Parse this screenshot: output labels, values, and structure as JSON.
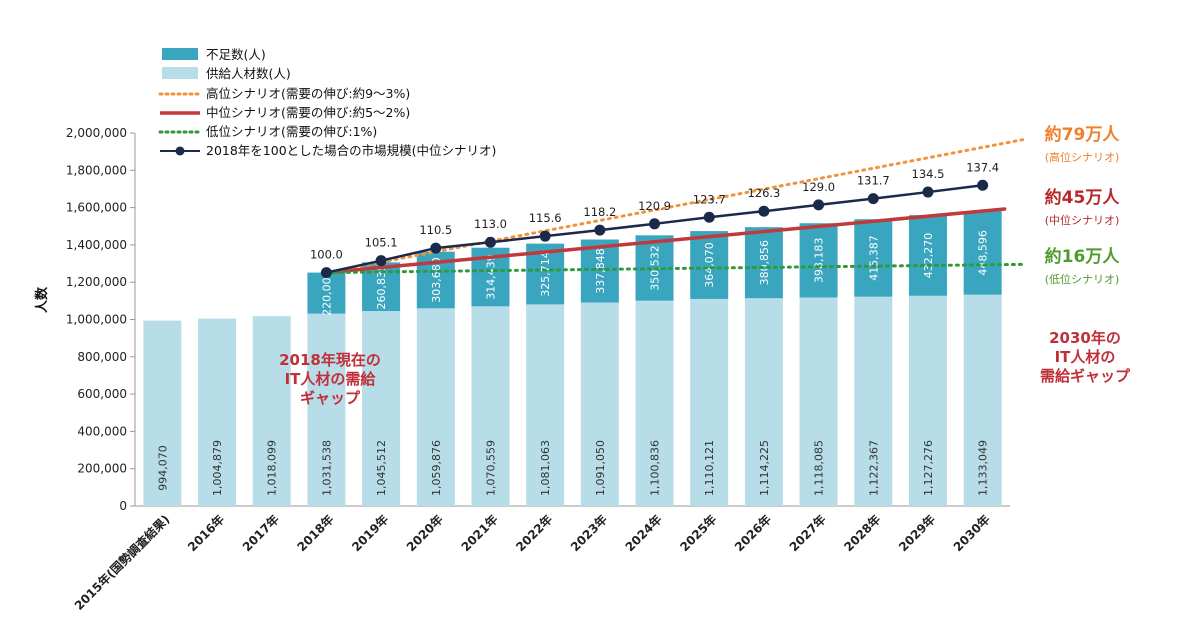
{
  "chart_data": {
    "type": "bar",
    "ylabel": "人数",
    "ylim": [
      0,
      2000000
    ],
    "yticks": [
      "0",
      "200,000",
      "400,000",
      "600,000",
      "800,000",
      "1,000,000",
      "1,200,000",
      "1,400,000",
      "1,600,000",
      "1,800,000",
      "2,000,000"
    ],
    "categories": [
      "2015年(国勢調査結果)",
      "2016年",
      "2017年",
      "2018年",
      "2019年",
      "2020年",
      "2021年",
      "2022年",
      "2023年",
      "2024年",
      "2025年",
      "2026年",
      "2027年",
      "2028年",
      "2029年",
      "2030年"
    ],
    "supply": {
      "name": "供給人材数(人)",
      "values": [
        994070,
        1004879,
        1018099,
        1031538,
        1045512,
        1059876,
        1070559,
        1081063,
        1091050,
        1100836,
        1110121,
        1114225,
        1118085,
        1122367,
        1127276,
        1133049
      ],
      "labels": [
        "994,070",
        "1,004,879",
        "1,018,099",
        "1,031,538",
        "1,045,512",
        "1,059,876",
        "1,070,559",
        "1,081,063",
        "1,091,050",
        "1,100,836",
        "1,110,121",
        "1,114,225",
        "1,118,085",
        "1,122,367",
        "1,127,276",
        "1,133,049"
      ],
      "color": "#b7dde8"
    },
    "shortage": {
      "name": "不足数(人)",
      "values": [
        null,
        null,
        null,
        220000,
        260835,
        303680,
        314439,
        325714,
        337848,
        350532,
        364070,
        380856,
        398183,
        415387,
        432270,
        448596
      ],
      "labels": [
        "",
        "",
        "",
        "220,000",
        "260,835",
        "303,680",
        "314,439",
        "325,714",
        "337,848",
        "350,532",
        "364,070",
        "380,856",
        "398,183",
        "415,387",
        "432,270",
        "448,596"
      ],
      "color": "#3aa5bf"
    },
    "scenarios": [
      {
        "name": "高位シナリオ(需要の伸び:約9～3%)",
        "style": "dotted",
        "color": "#f0943c",
        "values": [
          null,
          null,
          null,
          1251538,
          null,
          null,
          null,
          null,
          null,
          null,
          null,
          null,
          null,
          null,
          null,
          1923049
        ]
      },
      {
        "name": "中位シナリオ(需要の伸び:約5～2%)",
        "style": "solid",
        "color": "#c0393b",
        "values": [
          null,
          null,
          null,
          1251538,
          null,
          null,
          null,
          null,
          null,
          null,
          null,
          null,
          null,
          null,
          null,
          1581645
        ]
      },
      {
        "name": "低位シナリオ(需要の伸び:1%)",
        "style": "dotted",
        "color": "#2e9a3a",
        "values": [
          null,
          null,
          null,
          1251538,
          null,
          null,
          null,
          null,
          null,
          null,
          null,
          null,
          null,
          null,
          null,
          1293049
        ]
      }
    ],
    "index_series": {
      "name": "2018年を100とした場合の市場規模(中位シナリオ)",
      "color": "#1b2a4a",
      "values": [
        null,
        null,
        null,
        100.0,
        105.1,
        110.5,
        113.0,
        115.6,
        118.2,
        120.9,
        123.7,
        126.3,
        129.0,
        131.7,
        134.5,
        137.4
      ],
      "labels": [
        "",
        "",
        "",
        "100.0",
        "105.1",
        "110.5",
        "113.0",
        "115.6",
        "118.2",
        "120.9",
        "123.7",
        "126.3",
        "129.0",
        "131.7",
        "134.5",
        "137.4"
      ]
    },
    "annotations": [
      {
        "big": "約79万人",
        "small": "(高位シナリオ)",
        "color": "#ef7f2b"
      },
      {
        "big": "約45万人",
        "small": "(中位シナリオ)",
        "color": "#b8282d"
      },
      {
        "big": "約16万人",
        "small": "(低位シナリオ)",
        "color": "#4f9b2f"
      }
    ],
    "notes": {
      "gap_2018": [
        "2018年現在の",
        "IT人材の需給",
        "ギャップ"
      ],
      "gap_2030": [
        "2030年の",
        "IT人材の",
        "需給ギャップ"
      ]
    },
    "legend_position": "top-left"
  }
}
